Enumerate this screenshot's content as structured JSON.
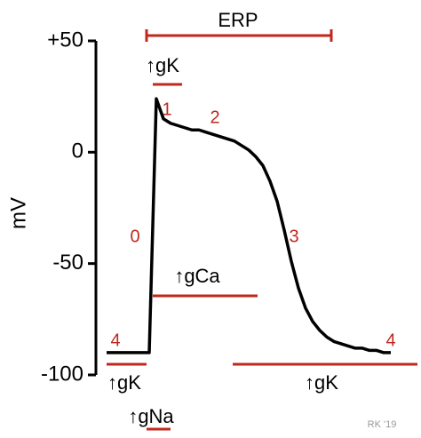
{
  "chart_data": {
    "type": "line",
    "y_label": "mV",
    "categories": [
      null,
      null,
      null,
      null,
      null,
      null,
      null,
      null,
      null,
      null,
      null,
      null,
      null,
      null,
      null,
      null,
      null,
      null,
      null,
      null,
      null,
      null,
      null,
      null,
      null,
      null,
      null,
      null,
      null,
      null,
      null,
      null,
      null,
      null,
      null,
      null,
      null,
      null,
      null,
      null,
      null
    ],
    "values": [
      -90,
      -90,
      -90,
      -90,
      -90,
      -90,
      -90,
      24,
      15,
      13,
      12,
      11,
      10,
      10,
      9,
      8,
      7,
      6,
      5,
      3,
      1,
      -2,
      -6,
      -13,
      -22,
      -35,
      -49,
      -61,
      -70,
      -76,
      -80,
      -83,
      -85,
      -86,
      -87,
      -88,
      -88,
      -89,
      -89,
      -90,
      -90
    ],
    "color": "#000000",
    "marker_color": "#c0281e",
    "ylim": [
      -100,
      50
    ],
    "yticks": [
      {
        "value": 50,
        "label": "+50"
      },
      0,
      -50,
      -100
    ],
    "annotations": [
      "ERP",
      "↑gK",
      "1",
      "2",
      "0",
      "3",
      "↑gCa",
      "4",
      "4",
      "↑gK",
      "↑gNa",
      "↑gK"
    ],
    "signature": "RK '19"
  }
}
